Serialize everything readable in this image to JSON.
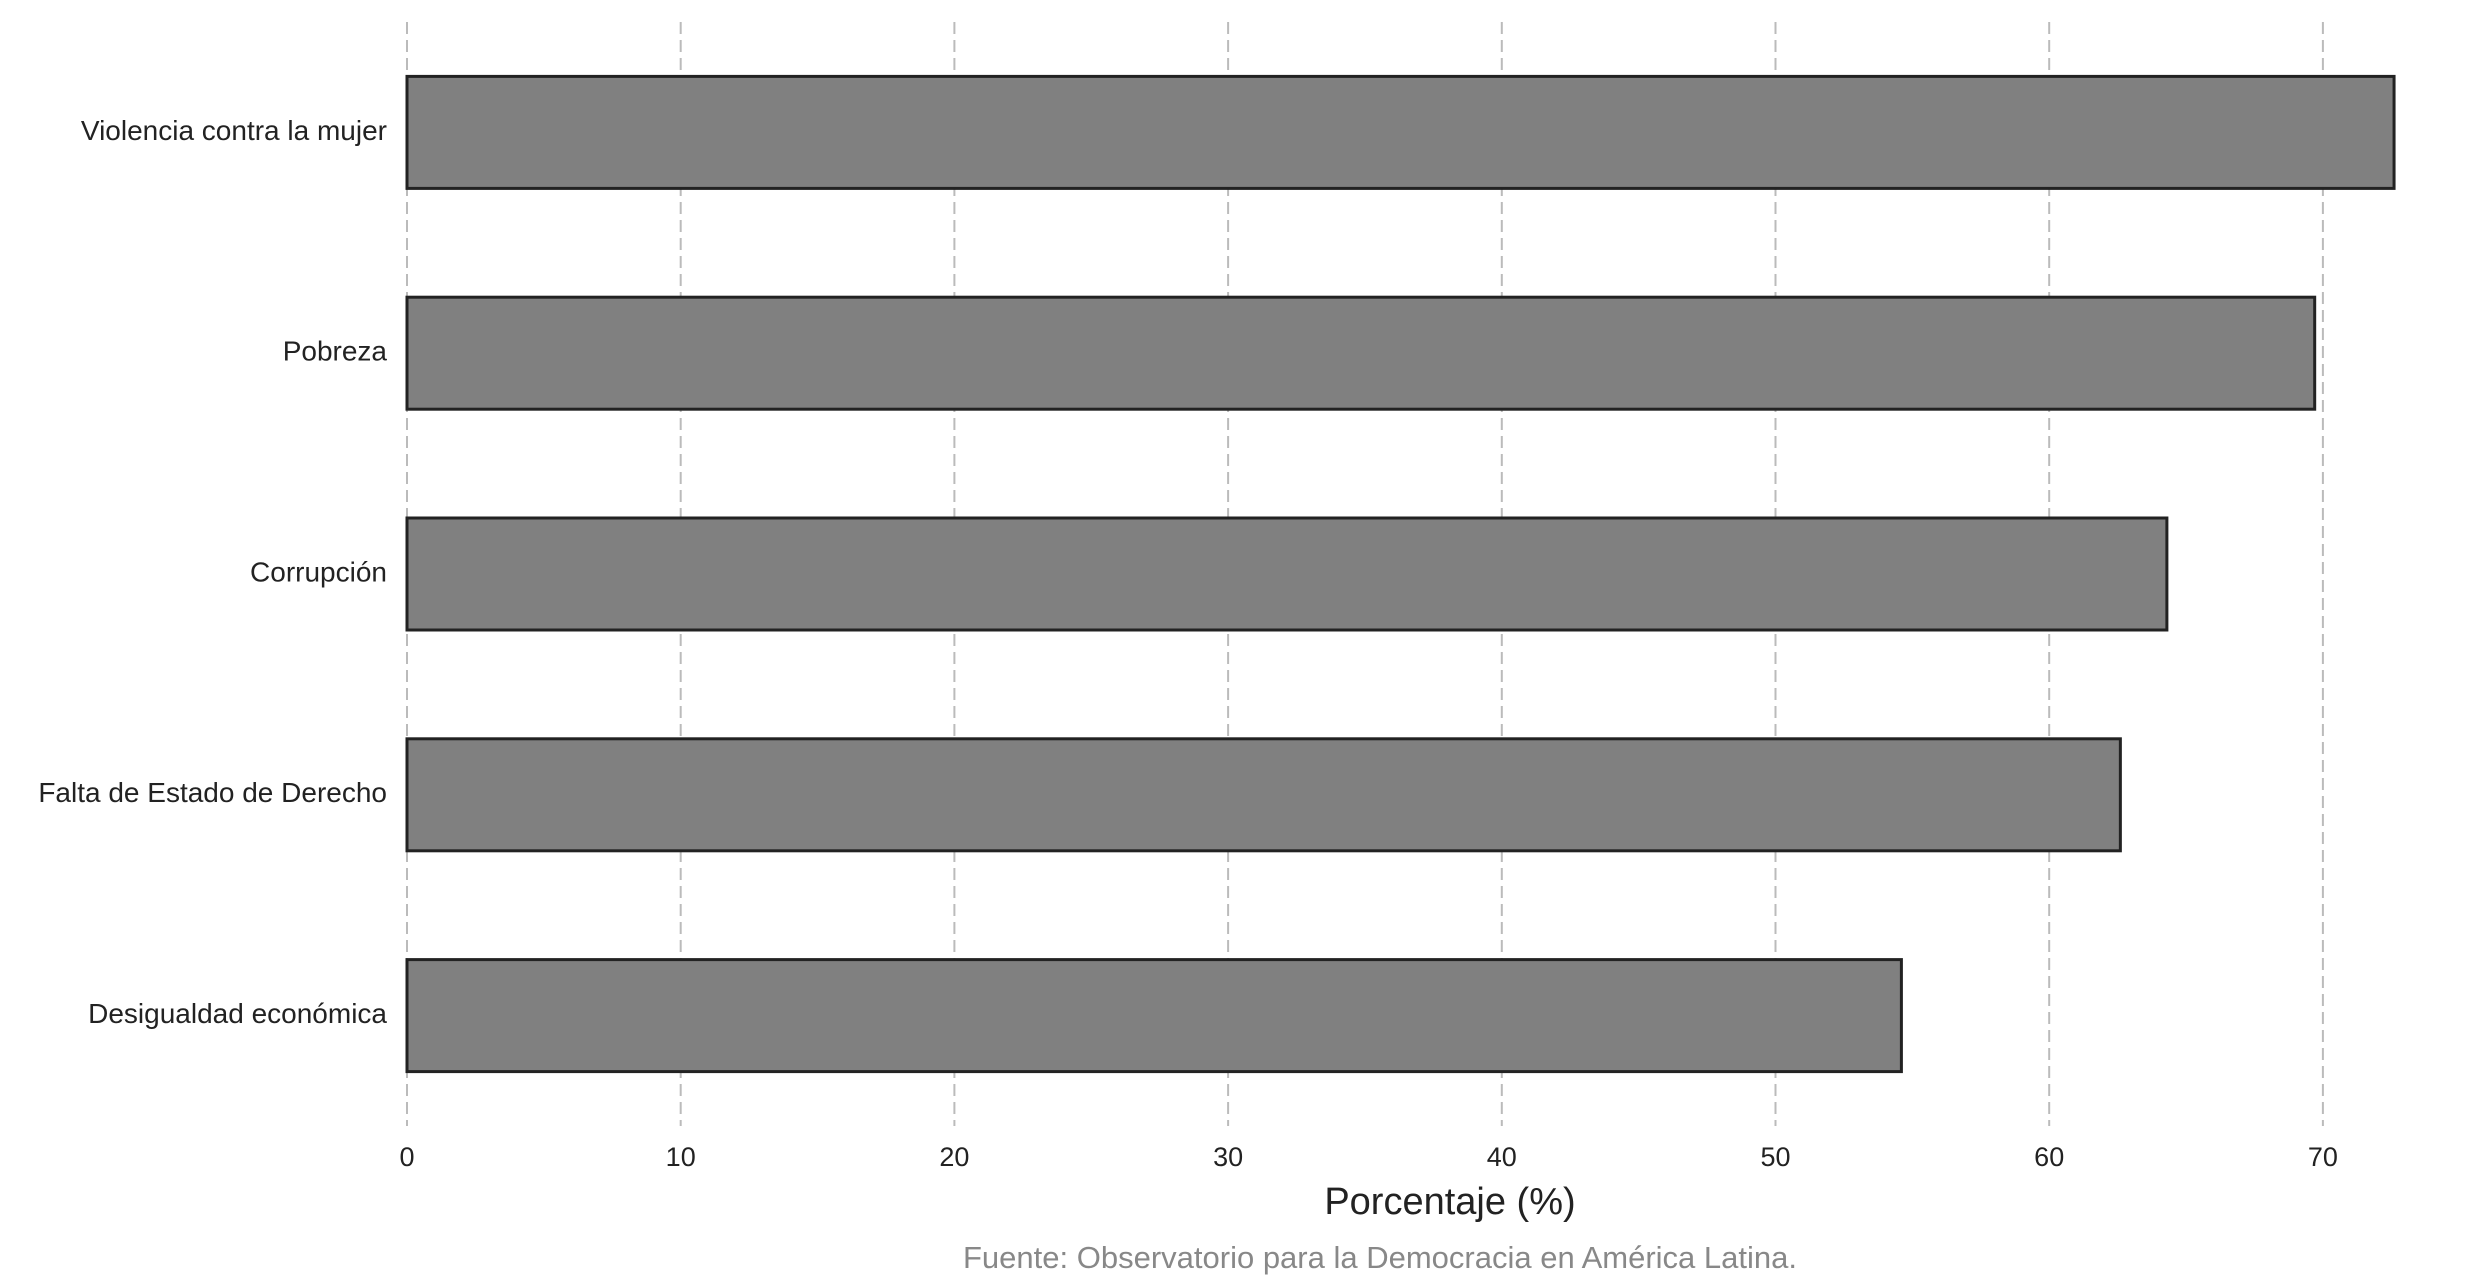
{
  "chart_data": {
    "type": "barh",
    "categories": [
      "Violencia contra la mujer",
      "Pobreza",
      "Corrupción",
      "Falta de Estado de Derecho",
      "Desigualdad económica"
    ],
    "values": [
      72.6,
      69.7,
      64.3,
      62.6,
      54.6
    ],
    "color": "#808080",
    "xlabel": "Porcentaje (%)",
    "source": "Fuente: Observatorio para la Democracia en América Latina.",
    "xlim": [
      0,
      74
    ],
    "xticks": [
      0,
      10,
      20,
      30,
      40,
      50,
      60,
      70
    ],
    "grid": true
  }
}
